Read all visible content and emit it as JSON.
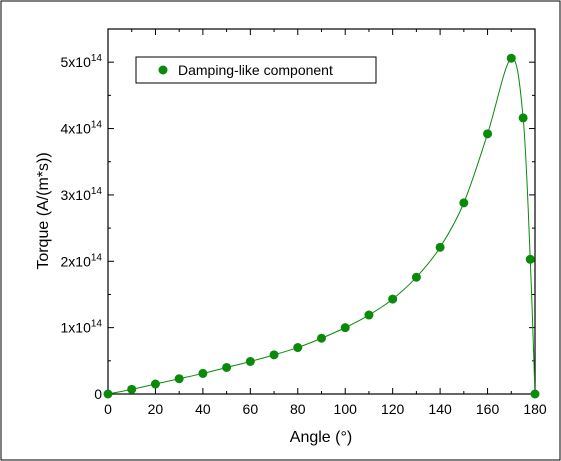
{
  "chart_data": {
    "type": "scatter",
    "xlabel": "Angle (°)",
    "ylabel": "Torque (A/(m*s))",
    "xlim": [
      0,
      180
    ],
    "ylim": [
      0,
      550000000000000.0
    ],
    "xticks": [
      0,
      20,
      40,
      60,
      80,
      100,
      120,
      140,
      160,
      180
    ],
    "xtick_labels": [
      "0",
      "20",
      "40",
      "60",
      "80",
      "100",
      "120",
      "140",
      "160",
      "180"
    ],
    "yticks": [
      0,
      100000000000000.0,
      200000000000000.0,
      300000000000000.0,
      400000000000000.0,
      500000000000000.0
    ],
    "ytick_labels": [
      {
        "base": "0",
        "exp": ""
      },
      {
        "base": "1x10",
        "exp": "14"
      },
      {
        "base": "2x10",
        "exp": "14"
      },
      {
        "base": "3x10",
        "exp": "14"
      },
      {
        "base": "4x10",
        "exp": "14"
      },
      {
        "base": "5x10",
        "exp": "14"
      }
    ],
    "grid": false,
    "legend": {
      "position": "top-left"
    },
    "color": "#0a8a0a",
    "series": [
      {
        "name": "Damping-like component",
        "marker": "circle",
        "fit_line": true,
        "x": [
          0,
          10,
          20,
          30,
          40,
          50,
          60,
          70,
          80,
          90,
          100,
          110,
          120,
          130,
          140,
          150,
          160,
          170,
          175,
          178,
          180
        ],
        "y": [
          0,
          7000000000000.0,
          15000000000000.0,
          23000000000000.0,
          31000000000000.0,
          40000000000000.0,
          49000000000000.0,
          59000000000000.0,
          70000000000000.0,
          84000000000000.0,
          100000000000000.0,
          119000000000000.0,
          143000000000000.0,
          176000000000000.0,
          221000000000000.0,
          288000000000000.0,
          392000000000000.0,
          506000000000000.0,
          416000000000000.0,
          203000000000000.0,
          0
        ]
      }
    ]
  }
}
